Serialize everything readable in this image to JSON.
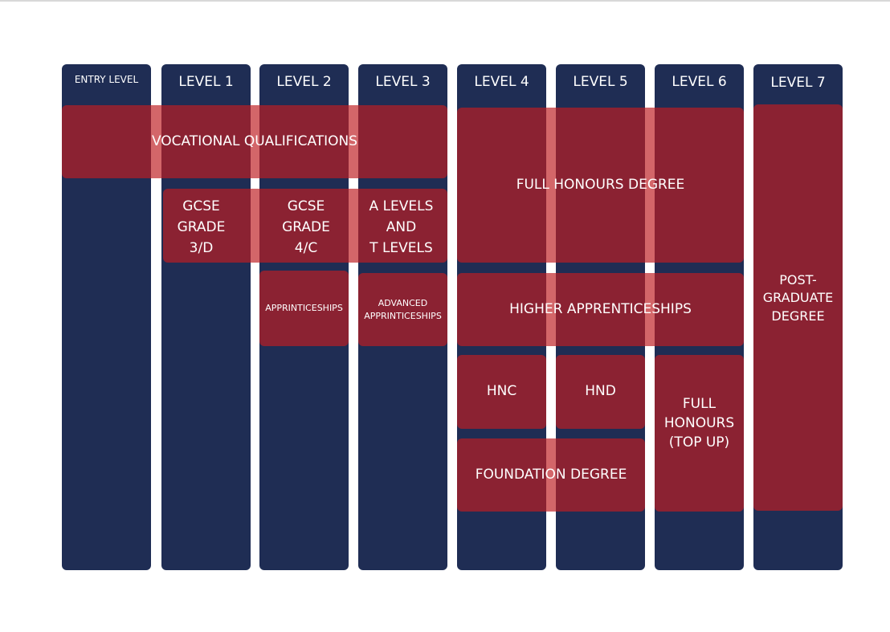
{
  "colors": {
    "column": "#1f2d54",
    "box": "rgba(190,30,34,0.68)",
    "text": "#ffffff"
  },
  "levels": [
    "ENTRY LEVEL",
    "LEVEL 1",
    "LEVEL 2",
    "LEVEL 3",
    "LEVEL 4",
    "LEVEL 5",
    "LEVEL 6",
    "LEVEL 7"
  ],
  "qualifications": {
    "vocational": "VOCATIONAL QUALIFICATIONS",
    "full_honours": "FULL HONOURS DEGREE",
    "gcse_3d": "GCSE\nGRADE\n3/D",
    "gcse_4c": "GCSE\nGRADE\n4/C",
    "a_levels": "A LEVELS\nAND\nT LEVELS",
    "apprenticeships": "APPRINTICESHIPS",
    "advanced": "ADVANCED\nAPPRINTICESHIPS",
    "higher": "HIGHER APPRENTICESHIPS",
    "hnc": "HNC",
    "hnd": "HND",
    "top_up": "FULL\nHONOURS\n(TOP UP)",
    "foundation": "FOUNDATION DEGREE",
    "postgrad": "POST-\nGRADUATE\nDEGREE"
  }
}
